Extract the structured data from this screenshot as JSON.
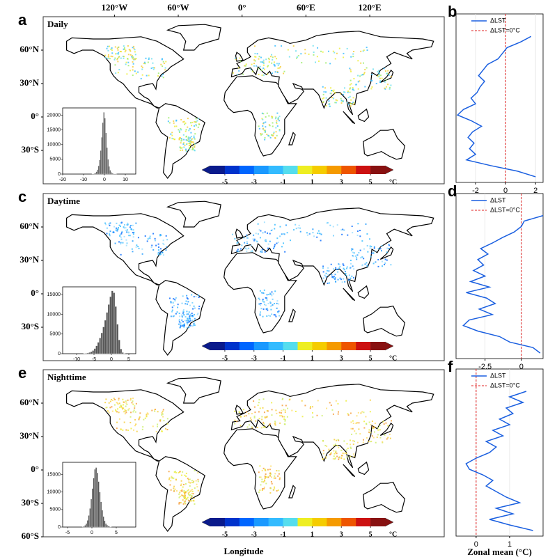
{
  "chart_data": [
    {
      "type": "map",
      "panel": "a",
      "title": "Daily",
      "xlim": [
        -187,
        190
      ],
      "ylim": [
        -60,
        90
      ],
      "xticks": [
        {
          "value": -120,
          "label": "120°W"
        },
        {
          "value": -60,
          "label": "60°W"
        },
        {
          "value": 0,
          "label": "0°"
        },
        {
          "value": 60,
          "label": "60°E"
        },
        {
          "value": 120,
          "label": "120°E"
        }
      ],
      "yticks": [
        {
          "value": 60,
          "label": "60°N"
        },
        {
          "value": 30,
          "label": "30°N"
        },
        {
          "value": 0,
          "label": "0°"
        },
        {
          "value": -30,
          "label": "30°S"
        }
      ]
    },
    {
      "type": "colorbar",
      "xlim": [
        -6,
        6
      ],
      "xticks": [
        -5,
        -3,
        -1,
        1,
        3,
        5
      ],
      "unit": "°C",
      "colors": [
        "#0a1a8c",
        "#0033cc",
        "#0066ff",
        "#1a99ff",
        "#33bbff",
        "#55ddee",
        "#eeee22",
        "#f5cc00",
        "#f59a00",
        "#ee5500",
        "#cc1111",
        "#881111"
      ]
    },
    {
      "type": "histogram",
      "bins": [
        -6,
        -5.5,
        -5,
        -4.5,
        -4,
        -3.5,
        -3,
        -2.5,
        -2,
        -1.5,
        -1,
        -0.5,
        0,
        0.5,
        1,
        1.5,
        2,
        2.5,
        3,
        3.5,
        4,
        4.5,
        5,
        5.5,
        6
      ],
      "values": [
        50,
        100,
        200,
        400,
        800,
        1500,
        2800,
        4800,
        8000,
        12500,
        17500,
        21000,
        19000,
        14000,
        9000,
        5000,
        2600,
        1300,
        600,
        300,
        150,
        80,
        40,
        20
      ],
      "color": "#555555",
      "xlim": [
        -20,
        15
      ],
      "xticks": [
        -20,
        -10,
        0,
        10
      ],
      "ylim": [
        0,
        22500
      ],
      "yticks": [
        0,
        5000,
        10000,
        15000,
        20000
      ]
    },
    {
      "type": "line",
      "panel": "b",
      "legend": "upper right",
      "grid": true,
      "xlim": [
        -3.3,
        2.5
      ],
      "xticks": [
        -2,
        0,
        2
      ],
      "ylim": [
        -60,
        90
      ],
      "y": [
        70,
        65,
        60,
        55,
        50,
        45,
        40,
        35,
        30,
        25,
        20,
        15,
        10,
        5,
        0,
        -5,
        -10,
        -15,
        -20,
        -25,
        -30,
        -35,
        -40,
        -45,
        -50,
        -55
      ],
      "series": [
        {
          "name": "ΔLST",
          "color": "#1a5fe0",
          "values": [
            1.7,
            1.0,
            0.1,
            -0.2,
            -0.5,
            -1.2,
            -1.5,
            -1.8,
            -1.4,
            -1.7,
            -1.9,
            -2.3,
            -2.0,
            -2.8,
            -3.2,
            -2.3,
            -1.6,
            -2.2,
            -2.5,
            -2.1,
            -2.4,
            -2.0,
            -2.6,
            -1.0,
            0.8,
            2.0
          ]
        }
      ],
      "refline": {
        "name": "ΔLST=0°C",
        "value": 0,
        "color": "#e02020"
      }
    },
    {
      "type": "map",
      "panel": "c",
      "title": "Daytime",
      "xlim": [
        -187,
        190
      ],
      "ylim": [
        -60,
        90
      ],
      "yticks": [
        {
          "value": 60,
          "label": "60°N"
        },
        {
          "value": 30,
          "label": "30°N"
        },
        {
          "value": 0,
          "label": "0°"
        },
        {
          "value": -30,
          "label": "30°S"
        }
      ]
    },
    {
      "type": "colorbar",
      "xlim": [
        -6,
        6
      ],
      "xticks": [
        -5,
        -3,
        -1,
        1,
        3,
        5
      ],
      "unit": "°C",
      "colors": [
        "#0a1a8c",
        "#0033cc",
        "#0066ff",
        "#1a99ff",
        "#33bbff",
        "#55ddee",
        "#eeee22",
        "#f5cc00",
        "#f59a00",
        "#ee5500",
        "#cc1111",
        "#881111"
      ]
    },
    {
      "type": "histogram",
      "bins": [
        -8,
        -7.5,
        -7,
        -6.5,
        -6,
        -5.5,
        -5,
        -4.5,
        -4,
        -3.5,
        -3,
        -2.5,
        -2,
        -1.5,
        -1,
        -0.5,
        0,
        0.5,
        1,
        1.5,
        2,
        2.5,
        3,
        3.5,
        4
      ],
      "values": [
        50,
        100,
        180,
        300,
        500,
        800,
        1300,
        2000,
        2900,
        4000,
        5300,
        6800,
        8500,
        10500,
        12500,
        14500,
        16000,
        15500,
        12000,
        7500,
        3500,
        1200,
        300,
        80
      ],
      "color": "#555555",
      "xlim": [
        -14,
        7
      ],
      "xticks": [
        -10,
        -5,
        0,
        5
      ],
      "ylim": [
        0,
        17000
      ],
      "yticks": [
        0,
        5000,
        10000,
        15000
      ]
    },
    {
      "type": "line",
      "panel": "d",
      "legend": "upper right",
      "grid": true,
      "xlim": [
        -4.5,
        1.5
      ],
      "xticks": [
        -2.5,
        0
      ],
      "ylim": [
        -60,
        90
      ],
      "y": [
        70,
        65,
        60,
        55,
        50,
        45,
        40,
        35,
        30,
        25,
        20,
        15,
        10,
        5,
        0,
        -5,
        -10,
        -15,
        -20,
        -25,
        -30,
        -35,
        -40,
        -45,
        -50,
        -55
      ],
      "series": [
        {
          "name": "ΔLST",
          "color": "#1a5fe0",
          "values": [
            1.5,
            0.2,
            0,
            -0.5,
            -1.3,
            -2.0,
            -2.8,
            -2.3,
            -3.0,
            -2.6,
            -3.3,
            -2.5,
            -3.5,
            -2.2,
            -3.8,
            -2.4,
            -1.8,
            -2.9,
            -2.0,
            -3.6,
            -4.0,
            -3.0,
            -1.5,
            -0.8,
            0.8,
            1.3
          ]
        }
      ],
      "refline": {
        "name": "ΔLST=0°C",
        "value": 0,
        "color": "#e02020"
      }
    },
    {
      "type": "map",
      "panel": "e",
      "title": "Nighttime",
      "xlim": [
        -187,
        190
      ],
      "ylim": [
        -60,
        90
      ],
      "xlabel": "Longitude",
      "yticks": [
        {
          "value": 60,
          "label": "60°N"
        },
        {
          "value": 30,
          "label": "30°N"
        },
        {
          "value": 0,
          "label": "0°"
        },
        {
          "value": -30,
          "label": "30°S"
        },
        {
          "value": -60,
          "label": "60°S"
        }
      ]
    },
    {
      "type": "colorbar",
      "xlim": [
        -6,
        6
      ],
      "xticks": [
        -5,
        -3,
        -1,
        1,
        3,
        5
      ],
      "unit": "°C",
      "colors": [
        "#0a1a8c",
        "#0033cc",
        "#0066ff",
        "#1a99ff",
        "#33bbff",
        "#55ddee",
        "#eeee22",
        "#f5cc00",
        "#f59a00",
        "#ee5500",
        "#cc1111",
        "#881111"
      ]
    },
    {
      "type": "histogram",
      "bins": [
        -2,
        -1.75,
        -1.5,
        -1.25,
        -1,
        -0.75,
        -0.5,
        -0.25,
        0,
        0.25,
        0.5,
        0.75,
        1,
        1.25,
        1.5,
        1.75,
        2,
        2.25,
        2.5,
        2.75,
        3,
        3.25,
        3.5,
        3.75,
        4
      ],
      "values": [
        100,
        250,
        500,
        1000,
        1900,
        3300,
        5300,
        8000,
        11000,
        14000,
        16500,
        17000,
        15500,
        13000,
        10000,
        7200,
        4800,
        3000,
        1800,
        1000,
        550,
        300,
        150,
        70
      ],
      "color": "#555555",
      "xlim": [
        -6,
        9
      ],
      "xticks": [
        -5,
        0,
        5
      ],
      "ylim": [
        0,
        18500
      ],
      "yticks": [
        0,
        5000,
        10000,
        15000
      ]
    },
    {
      "type": "line",
      "panel": "f",
      "legend": "upper right",
      "grid": true,
      "xlim": [
        -0.6,
        2.0
      ],
      "xticks": [
        0,
        1
      ],
      "ylim": [
        -60,
        90
      ],
      "xlabel": "Zonal mean  (°C)",
      "y": [
        70,
        65,
        60,
        55,
        50,
        45,
        40,
        35,
        30,
        25,
        20,
        15,
        10,
        5,
        0,
        -5,
        -10,
        -15,
        -20,
        -25,
        -30,
        -35,
        -40,
        -45,
        -50,
        -55
      ],
      "series": [
        {
          "name": "ΔLST",
          "color": "#1a5fe0",
          "values": [
            1.5,
            1.0,
            1.4,
            0.9,
            1.1,
            0.7,
            1.0,
            0.5,
            0.8,
            0.3,
            0.6,
            0.4,
            0.0,
            -0.3,
            -0.2,
            0.2,
            0.5,
            0.3,
            0.6,
            0.9,
            1.3,
            0.6,
            1.1,
            0.4,
            1.0,
            1.7
          ]
        }
      ],
      "refline": {
        "name": "ΔLST=0°C",
        "value": 0,
        "color": "#e02020"
      }
    }
  ]
}
